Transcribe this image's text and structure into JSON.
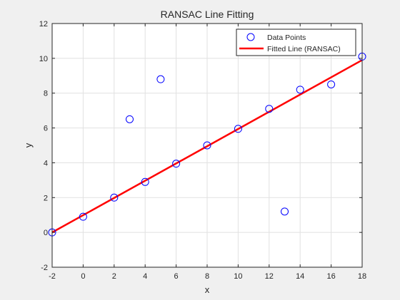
{
  "chart_data": {
    "type": "scatter",
    "title": "RANSAC Line Fitting",
    "xlabel": "x",
    "ylabel": "y",
    "xlim": [
      -2,
      18
    ],
    "ylim": [
      -2,
      12
    ],
    "xticks": [
      -2,
      0,
      2,
      4,
      6,
      8,
      10,
      12,
      14,
      16,
      18
    ],
    "yticks": [
      -2,
      0,
      2,
      4,
      6,
      8,
      10,
      12
    ],
    "grid": true,
    "legend_position": "top-right",
    "series": [
      {
        "name": "Data Points",
        "kind": "marker",
        "marker": "circle",
        "color": "#0000ff",
        "x": [
          -2,
          0,
          2,
          3,
          4,
          5,
          6,
          8,
          10,
          12,
          13,
          14,
          16,
          18
        ],
        "y": [
          0.0,
          0.9,
          2.0,
          6.5,
          2.9,
          8.8,
          3.95,
          5.0,
          5.95,
          7.1,
          1.2,
          8.2,
          8.5,
          10.1
        ]
      },
      {
        "name": "Fitted Line (RANSAC)",
        "kind": "line",
        "color": "#ff0000",
        "x": [
          -2,
          18
        ],
        "y": [
          0.0,
          9.9
        ]
      }
    ]
  },
  "colors": {
    "figure_background": "#f0f0f0",
    "axes_background": "#ffffff",
    "grid": "#e1e1e1",
    "axis": "#262626"
  }
}
